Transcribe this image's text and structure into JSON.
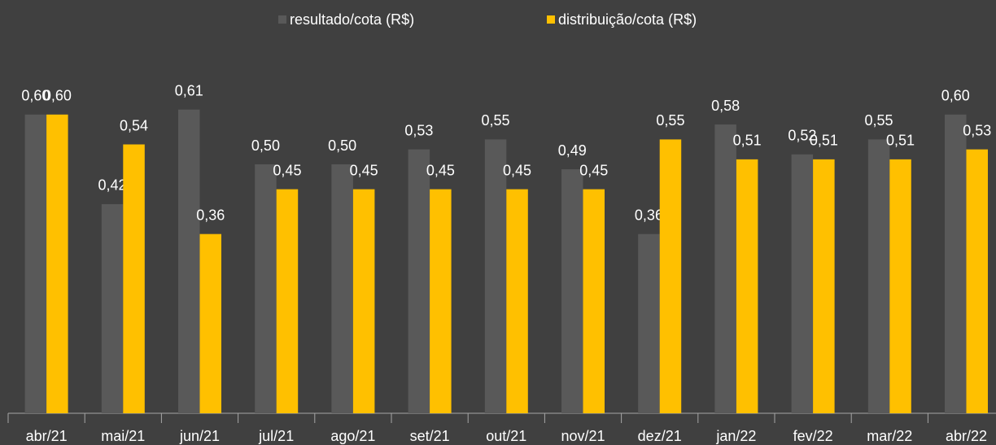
{
  "chart_data": {
    "type": "bar",
    "categories": [
      "abr/21",
      "mai/21",
      "jun/21",
      "jul/21",
      "ago/21",
      "set/21",
      "out/21",
      "nov/21",
      "dez/21",
      "jan/22",
      "fev/22",
      "mar/22",
      "abr/22"
    ],
    "series": [
      {
        "name": "resultado/cota (R$)",
        "color": "#595959",
        "values": [
          0.6,
          0.42,
          0.61,
          0.5,
          0.5,
          0.53,
          0.55,
          0.49,
          0.36,
          0.58,
          0.52,
          0.55,
          0.6
        ],
        "value_labels": [
          "0,60",
          "0,42",
          "0,61",
          "0,50",
          "0,50",
          "0,53",
          "0,55",
          "0,49",
          "0,36",
          "0,58",
          "0,52",
          "0,55",
          "0,60"
        ]
      },
      {
        "name": "distribuição/cota (R$)",
        "color": "#ffc000",
        "values": [
          0.6,
          0.54,
          0.36,
          0.45,
          0.45,
          0.45,
          0.45,
          0.45,
          0.55,
          0.51,
          0.51,
          0.51,
          0.53
        ],
        "value_labels": [
          "0,60",
          "0,54",
          "0,36",
          "0,45",
          "0,45",
          "0,45",
          "0,45",
          "0,45",
          "0,55",
          "0,51",
          "0,51",
          "0,51",
          "0,53"
        ]
      }
    ],
    "ylim": [
      0,
      0.8
    ],
    "legend": "top"
  }
}
